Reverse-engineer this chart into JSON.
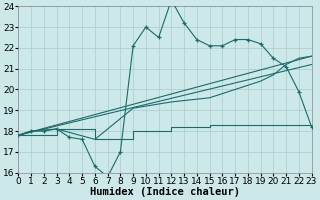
{
  "background_color": "#cce8e8",
  "grid_color": "#aacccc",
  "line_color": "#1a6b6b",
  "x_min": 0,
  "x_max": 23,
  "y_min": 16,
  "y_max": 24,
  "xlabel": "Humidex (Indice chaleur)",
  "xlabel_fontsize": 7.5,
  "tick_fontsize": 6.5,
  "curve1_x": [
    0,
    1,
    2,
    3,
    4,
    5,
    6,
    7,
    8,
    9,
    10,
    11,
    12,
    13,
    14,
    15,
    16,
    17,
    18,
    19,
    20,
    21,
    22,
    23
  ],
  "curve1_y": [
    17.8,
    18.0,
    18.0,
    18.1,
    17.7,
    17.6,
    16.3,
    15.8,
    17.0,
    22.1,
    23.0,
    22.5,
    24.3,
    23.2,
    22.4,
    22.1,
    22.1,
    22.4,
    22.4,
    22.2,
    21.5,
    21.1,
    19.9,
    18.2
  ],
  "curve2_x": [
    0,
    1,
    3,
    6,
    9,
    12,
    15,
    18,
    19,
    20,
    21,
    22,
    23
  ],
  "curve2_y": [
    17.8,
    18.0,
    18.1,
    17.6,
    19.1,
    19.4,
    19.6,
    20.2,
    20.4,
    20.7,
    21.2,
    21.5,
    21.6
  ],
  "step_x": [
    0,
    3,
    6,
    9,
    12,
    15,
    18,
    21,
    23
  ],
  "step_y": [
    17.8,
    18.1,
    17.6,
    18.0,
    18.2,
    18.3,
    18.3,
    18.3,
    18.3
  ],
  "line1_x": [
    0,
    23
  ],
  "line1_y": [
    17.8,
    21.6
  ],
  "line2_x": [
    0,
    23
  ],
  "line2_y": [
    17.8,
    21.2
  ]
}
